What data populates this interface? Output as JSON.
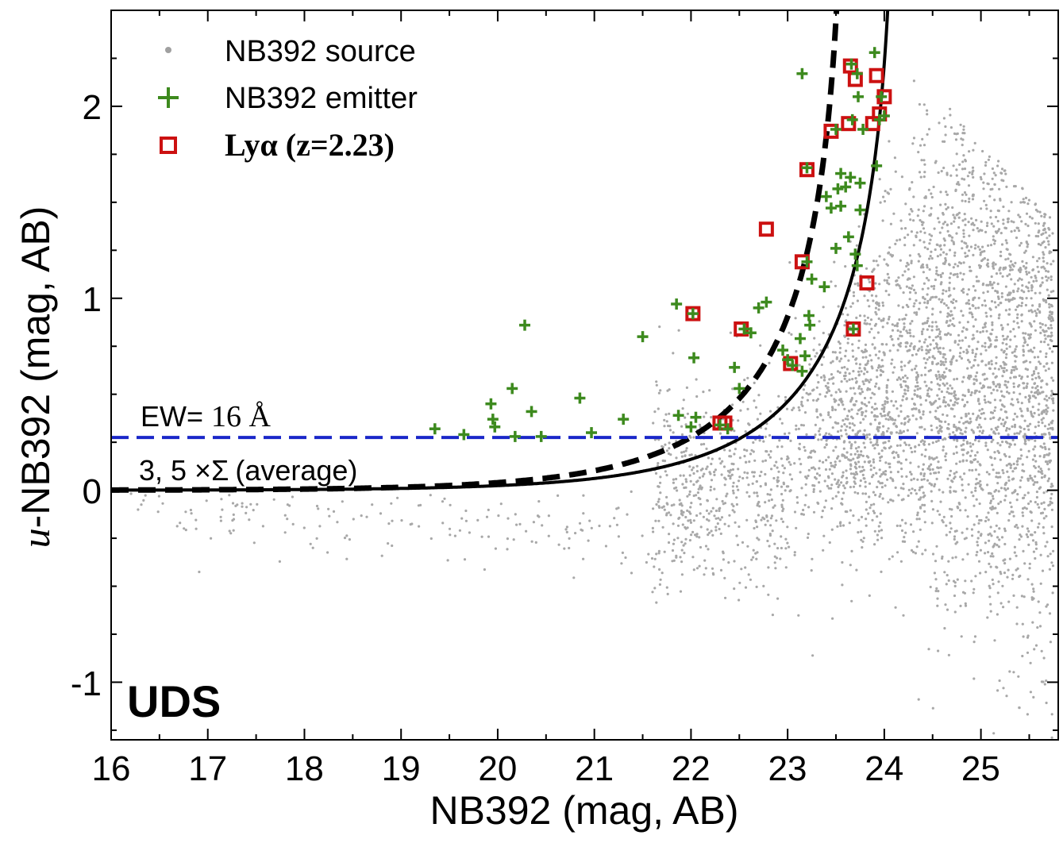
{
  "chart_data": {
    "type": "scatter",
    "title": "",
    "xlabel": "NB392 (mag, AB)",
    "ylabel_math": "u",
    "ylabel_rest": "-NB392 (mag, AB)",
    "xlim": [
      16,
      25.8
    ],
    "ylim": [
      -1.3,
      2.5
    ],
    "x_ticks": [
      16,
      17,
      18,
      19,
      20,
      21,
      22,
      23,
      24,
      25
    ],
    "x_tick_labels": [
      "16",
      "17",
      "18",
      "19",
      "20",
      "21",
      "22",
      "23",
      "24",
      "25"
    ],
    "y_ticks": [
      -1,
      0,
      1,
      2
    ],
    "y_tick_labels": [
      "-1",
      "0",
      "1",
      "2"
    ],
    "field_label": "UDS",
    "legend": {
      "placement": "top-left",
      "entries": [
        {
          "label": "NB392 source",
          "marker": "dot",
          "color": "#9e9e9e"
        },
        {
          "label": "NB392 emitter",
          "marker": "plus",
          "color": "#3d8a1e"
        },
        {
          "label": "Lyα (z=2.23)",
          "marker": "square",
          "color": "#cc1111"
        }
      ]
    },
    "ew_label_prefix": "EW=",
    "ew_label_value": "16 Å",
    "sigma_label_prefix": "3, 5 ×Σ",
    "sigma_label_suffix": "(average)",
    "ew_cut_y": 0.275,
    "curve_3sigma": {
      "style": "solid",
      "color": "#000000",
      "note": "3 sigma limit",
      "asymptote_x": 24.15
    },
    "curve_5sigma": {
      "style": "dashed",
      "color": "#000000",
      "note": "5 sigma limit",
      "asymptote_x": 23.62
    },
    "ew_line": {
      "style": "dashed",
      "color": "#1a27c9"
    },
    "emitters": [
      [
        19.35,
        0.32
      ],
      [
        19.65,
        0.29
      ],
      [
        19.93,
        0.45
      ],
      [
        19.95,
        0.37
      ],
      [
        19.97,
        0.33
      ],
      [
        20.15,
        0.53
      ],
      [
        20.18,
        0.28
      ],
      [
        20.28,
        0.86
      ],
      [
        20.35,
        0.41
      ],
      [
        20.45,
        0.28
      ],
      [
        20.85,
        0.48
      ],
      [
        20.97,
        0.3
      ],
      [
        21.3,
        0.37
      ],
      [
        21.5,
        0.8
      ],
      [
        21.85,
        0.97
      ],
      [
        21.87,
        0.39
      ],
      [
        22.0,
        0.33
      ],
      [
        22.02,
        0.92
      ],
      [
        22.03,
        0.69
      ],
      [
        22.05,
        0.38
      ],
      [
        22.3,
        0.34
      ],
      [
        22.38,
        0.32
      ],
      [
        22.45,
        0.64
      ],
      [
        22.5,
        0.53
      ],
      [
        22.55,
        0.84
      ],
      [
        22.62,
        0.82
      ],
      [
        22.7,
        0.95
      ],
      [
        22.78,
        0.98
      ],
      [
        22.95,
        0.73
      ],
      [
        23.0,
        0.68
      ],
      [
        23.05,
        0.65
      ],
      [
        23.13,
        0.79
      ],
      [
        23.15,
        0.62
      ],
      [
        23.18,
        0.7
      ],
      [
        23.22,
        0.91
      ],
      [
        23.23,
        0.86
      ],
      [
        23.25,
        1.1
      ],
      [
        23.2,
        1.19
      ],
      [
        23.38,
        1.06
      ],
      [
        23.2,
        1.68
      ],
      [
        23.15,
        2.17
      ],
      [
        23.4,
        1.53
      ],
      [
        23.45,
        1.47
      ],
      [
        23.5,
        1.88
      ],
      [
        23.5,
        1.26
      ],
      [
        23.52,
        1.57
      ],
      [
        23.55,
        1.65
      ],
      [
        23.55,
        1.48
      ],
      [
        23.6,
        1.58
      ],
      [
        23.63,
        1.32
      ],
      [
        23.65,
        1.63
      ],
      [
        23.67,
        1.93
      ],
      [
        23.7,
        1.23
      ],
      [
        23.72,
        1.17
      ],
      [
        23.73,
        2.05
      ],
      [
        23.75,
        1.46
      ],
      [
        23.75,
        1.6
      ],
      [
        23.78,
        1.88
      ],
      [
        23.9,
        2.28
      ],
      [
        23.92,
        1.69
      ],
      [
        23.95,
        1.93
      ],
      [
        23.66,
        2.22
      ],
      [
        23.68,
        0.84
      ],
      [
        23.72,
        2.17
      ],
      [
        23.97,
        2.05
      ],
      [
        24.0,
        1.95
      ]
    ],
    "lya": [
      [
        22.02,
        0.92
      ],
      [
        22.3,
        0.35
      ],
      [
        22.35,
        0.35
      ],
      [
        22.52,
        0.84
      ],
      [
        22.78,
        1.36
      ],
      [
        23.03,
        0.66
      ],
      [
        23.15,
        1.19
      ],
      [
        23.2,
        1.67
      ],
      [
        23.45,
        1.87
      ],
      [
        23.63,
        1.91
      ],
      [
        23.65,
        2.21
      ],
      [
        23.7,
        2.14
      ],
      [
        23.68,
        0.84
      ],
      [
        23.82,
        1.08
      ],
      [
        23.88,
        1.91
      ],
      [
        23.92,
        2.16
      ],
      [
        23.95,
        1.96
      ],
      [
        24.0,
        2.05
      ]
    ]
  }
}
